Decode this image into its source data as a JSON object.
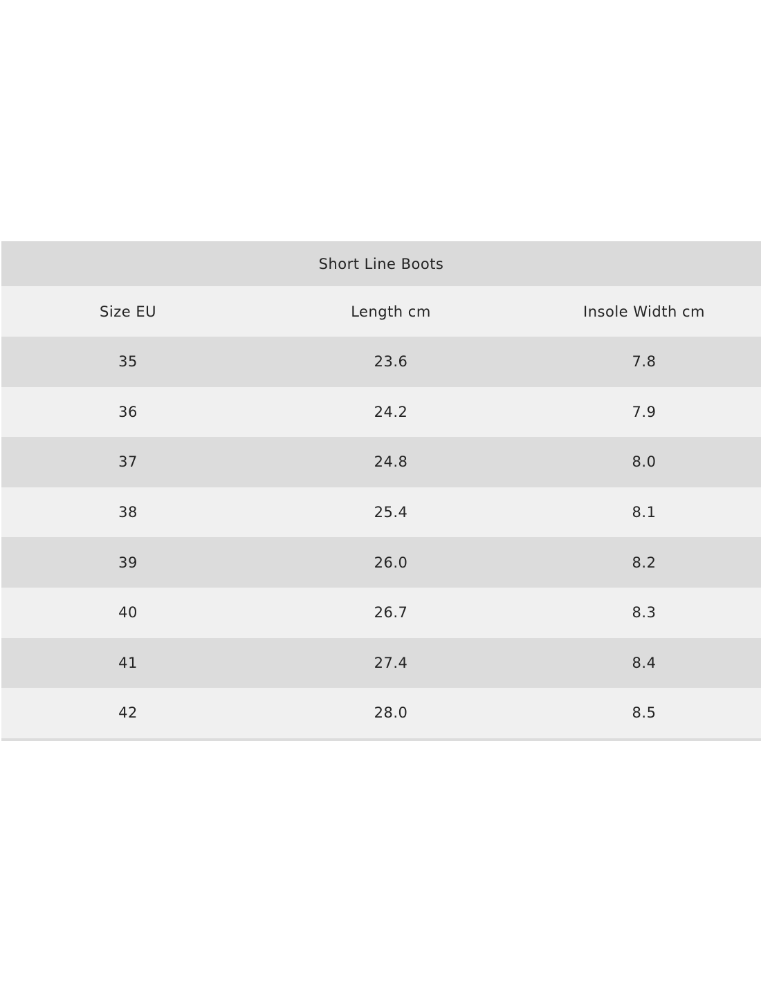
{
  "table": {
    "title": "Short Line Boots",
    "columns": [
      "Size EU",
      "Length cm",
      "Insole Width cm"
    ],
    "rows": [
      [
        "35",
        "23.6",
        "7.8"
      ],
      [
        "36",
        "24.2",
        "7.9"
      ],
      [
        "37",
        "24.8",
        "8.0"
      ],
      [
        "38",
        "25.4",
        "8.1"
      ],
      [
        "39",
        "26.0",
        "8.2"
      ],
      [
        "40",
        "26.7",
        "8.3"
      ],
      [
        "41",
        "27.4",
        "8.4"
      ],
      [
        "42",
        "28.0",
        "8.5"
      ]
    ]
  }
}
